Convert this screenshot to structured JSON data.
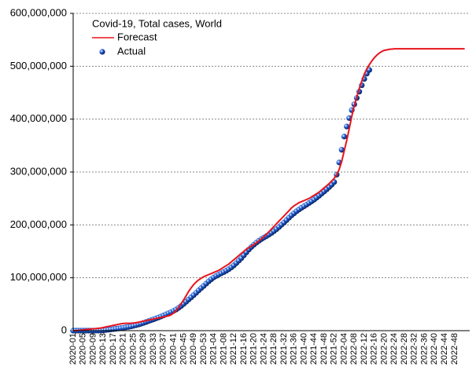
{
  "chart_data": {
    "type": "line",
    "legend_title": "Covid-19, Total cases, World",
    "legend": "upper left",
    "grid": true,
    "ylim": [
      0,
      600000000
    ],
    "yticks": [
      0,
      {
        "value": 100000000,
        "label": "100,000,000"
      },
      {
        "value": 200000000,
        "label": "200,000,000"
      },
      {
        "value": 300000000,
        "label": "300,000,000"
      },
      {
        "value": 400000000,
        "label": "400,000,000"
      },
      {
        "value": 500000000,
        "label": "500,000,000"
      },
      {
        "value": 600000000,
        "label": "600,000,000"
      }
    ],
    "categories": [
      "2020-01",
      null,
      null,
      null,
      "2020-05",
      null,
      null,
      null,
      "2020-09",
      null,
      null,
      null,
      "2020-13",
      null,
      null,
      null,
      "2020-17",
      null,
      null,
      null,
      "2020-21",
      null,
      null,
      null,
      "2020-25",
      null,
      null,
      null,
      "2020-29",
      null,
      null,
      null,
      "2020-33",
      null,
      null,
      null,
      "2020-37",
      null,
      null,
      null,
      "2020-41",
      null,
      null,
      null,
      "2020-45",
      null,
      null,
      null,
      "2020-49",
      null,
      null,
      null,
      "2020-53",
      null,
      null,
      null,
      "2021-04",
      null,
      null,
      null,
      "2021-08",
      null,
      null,
      null,
      "2021-12",
      null,
      null,
      null,
      "2021-16",
      null,
      null,
      null,
      "2021-20",
      null,
      null,
      null,
      "2021-24",
      null,
      null,
      null,
      "2021-28",
      null,
      null,
      null,
      "2021-32",
      null,
      null,
      null,
      "2021-36",
      null,
      null,
      null,
      "2021-40",
      null,
      null,
      null,
      "2021-44",
      null,
      null,
      null,
      "2021-48",
      null,
      null,
      null,
      "2021-52",
      null,
      null,
      null,
      "2022-04",
      null,
      null,
      null,
      "2022-08",
      null,
      null,
      null,
      "2022-12",
      null,
      null,
      null,
      "2022-16",
      null,
      null,
      null,
      "2022-20",
      null,
      null,
      null,
      "2022-24",
      null,
      null,
      null,
      "2022-28",
      null,
      null,
      null,
      "2022-32",
      null,
      null,
      null,
      "2022-36",
      null,
      null,
      null,
      "2022-40",
      null,
      null,
      null,
      "2022-44",
      null,
      null,
      null,
      "2022-48",
      null,
      null,
      null,
      null
    ],
    "series": [
      {
        "name": "Forecast",
        "style": "line",
        "color": "#e8141c",
        "values": [
          0,
          0,
          500000,
          1000000,
          1500000,
          2000000,
          2500000,
          3000000,
          3500000,
          4000000,
          4500000,
          5000000,
          6000000,
          7000000,
          8000000,
          9000000,
          10000000,
          11000000,
          12000000,
          13000000,
          13500000,
          14000000,
          14000000,
          14000000,
          14500000,
          15000000,
          16000000,
          17000000,
          18000000,
          19000000,
          20000000,
          21000000,
          22000000,
          23000000,
          24000000,
          25000000,
          26000000,
          27000000,
          28000000,
          30000000,
          33000000,
          38000000,
          44000000,
          51000000,
          58000000,
          66000000,
          74000000,
          81000000,
          87000000,
          92000000,
          96000000,
          99000000,
          102000000,
          104000000,
          106000000,
          108000000,
          110000000,
          112000000,
          114000000,
          117000000,
          120000000,
          123000000,
          126000000,
          130000000,
          134000000,
          138000000,
          142000000,
          146000000,
          150000000,
          154000000,
          157000000,
          160000000,
          163000000,
          166000000,
          170000000,
          174000000,
          178000000,
          182000000,
          187000000,
          192000000,
          197000000,
          202000000,
          207000000,
          212000000,
          217000000,
          222000000,
          227000000,
          232000000,
          236000000,
          239000000,
          242000000,
          244000000,
          246000000,
          248000000,
          250000000,
          253000000,
          256000000,
          259000000,
          262000000,
          266000000,
          270000000,
          274000000,
          278000000,
          283000000,
          288000000,
          295000000,
          305000000,
          320000000,
          340000000,
          360000000,
          382000000,
          405000000,
          425000000,
          442000000,
          458000000,
          472000000,
          485000000,
          495000000,
          503000000,
          510000000,
          516000000,
          521000000,
          525000000,
          528000000,
          530000000,
          531000000,
          532000000,
          532500000,
          533000000,
          533000000,
          533000000,
          533000000,
          533000000,
          533000000,
          533000000,
          533000000,
          533000000,
          533000000,
          533000000,
          533000000,
          533000000,
          533000000,
          533000000,
          533000000,
          533000000,
          533000000,
          533000000,
          533000000,
          533000000,
          533000000,
          533000000,
          533000000,
          533000000,
          533000000,
          533000000,
          533000000,
          533000000
        ]
      },
      {
        "name": "Actual",
        "style": "dots",
        "color": "#1f5fd6",
        "values": [
          0,
          0,
          600,
          5000,
          10000,
          30000,
          50000,
          80000,
          90000,
          110000,
          150000,
          300000,
          700000,
          1200000,
          1800000,
          2300000,
          2900000,
          3500000,
          4100000,
          4800000,
          5500000,
          6300000,
          7100000,
          8000000,
          9100000,
          10300000,
          11600000,
          13000000,
          14600000,
          16300000,
          18000000,
          19700000,
          21400000,
          23200000,
          25000000,
          26800000,
          28800000,
          30800000,
          32900000,
          35000000,
          37400000,
          40000000,
          43100000,
          46600000,
          50500000,
          54600000,
          58900000,
          63000000,
          67300000,
          71600000,
          76100000,
          80500000,
          84500000,
          89000000,
          93300000,
          97100000,
          100600000,
          103500000,
          106100000,
          108400000,
          110800000,
          113400000,
          116300000,
          119700000,
          123400000,
          127800000,
          132400000,
          137000000,
          142500000,
          148100000,
          153400000,
          158200000,
          162500000,
          166400000,
          170000000,
          173200000,
          176000000,
          178800000,
          181600000,
          184800000,
          188200000,
          191900000,
          196000000,
          200100000,
          204400000,
          209000000,
          213600000,
          218000000,
          222000000,
          225800000,
          229200000,
          232400000,
          235300000,
          238300000,
          241400000,
          244500000,
          247800000,
          251400000,
          255200000,
          259200000,
          263100000,
          267200000,
          271500000,
          275900000,
          281000000,
          295000000,
          318000000,
          342000000,
          367000000,
          386000000,
          402000000,
          417000000,
          428000000,
          440000000,
          452000000,
          464000000,
          476000000,
          486000000,
          493000000,
          null,
          null,
          null,
          null,
          null,
          null,
          null,
          null,
          null,
          null,
          null,
          null,
          null,
          null,
          null,
          null,
          null,
          null,
          null,
          null,
          null,
          null,
          null,
          null,
          null,
          null,
          null,
          null,
          null,
          null,
          null,
          null,
          null,
          null,
          null,
          null,
          null,
          null
        ]
      }
    ]
  }
}
